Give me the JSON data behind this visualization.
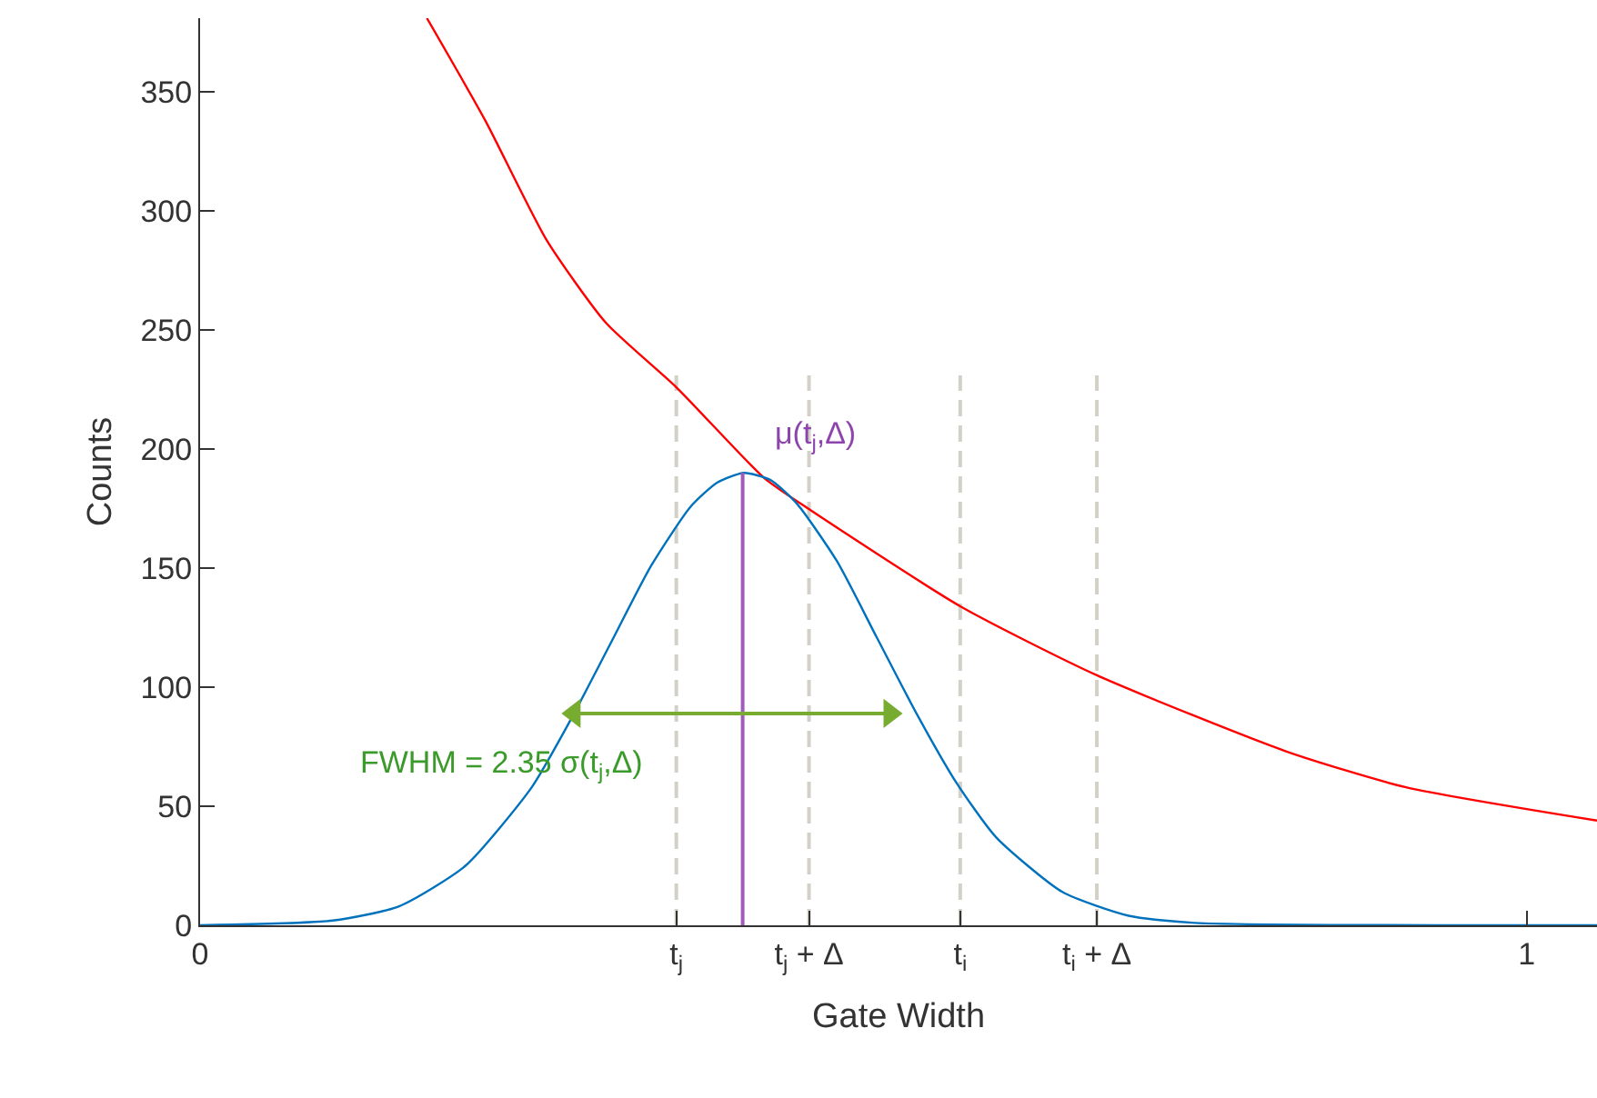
{
  "chart_data": {
    "type": "line",
    "xlabel": "Gate Width",
    "ylabel": "Counts",
    "xlim": [
      0,
      1.053
    ],
    "ylim": [
      0,
      381
    ],
    "xticks": [
      0,
      {
        "value": 0.359,
        "label": "t$_{j}$"
      },
      {
        "value": 0.459,
        "label": "t$_{j}$ + Δ"
      },
      {
        "value": 0.573,
        "label": "t$_{i}$"
      },
      {
        "value": 0.676,
        "label": "t$_{i}$ + Δ"
      },
      1
    ],
    "yticks": [
      0,
      50,
      100,
      150,
      200,
      250,
      300,
      350
    ],
    "series": [
      {
        "color": "#d3d0c8",
        "line_style": "dashed",
        "x": [
          0.359,
          0.359
        ],
        "values": [
          0,
          231
        ]
      },
      {
        "color": "#d3d0c8",
        "line_style": "dashed",
        "x": [
          0.459,
          0.459
        ],
        "values": [
          0,
          231
        ]
      },
      {
        "color": "#d3d0c8",
        "line_style": "dashed",
        "x": [
          0.573,
          0.573
        ],
        "values": [
          0,
          231
        ]
      },
      {
        "color": "#d3d0c8",
        "line_style": "dashed",
        "x": [
          0.676,
          0.676
        ],
        "values": [
          0,
          231
        ]
      },
      {
        "color": "#ff0000",
        "x": [
          0.171,
          0.215,
          0.261,
          0.306,
          0.359,
          0.425,
          0.453,
          0.573,
          0.676,
          0.819,
          0.909,
          1.053
        ],
        "values": [
          381,
          338,
          288,
          253,
          226,
          188,
          177,
          134,
          105,
          73,
          58,
          44
        ]
      },
      {
        "color": "#0072bd",
        "x": [
          0,
          0.1,
          0.15,
          0.2,
          0.25,
          0.28,
          0.31,
          0.34,
          0.37,
          0.39,
          0.41,
          0.43,
          0.45,
          0.48,
          0.51,
          0.54,
          0.57,
          0.6,
          0.65,
          0.7,
          0.75,
          1.053
        ],
        "values": [
          0,
          2,
          8,
          25,
          58,
          87,
          119,
          151,
          176,
          186,
          190,
          187,
          177,
          153,
          121,
          89,
          60,
          37,
          14,
          4,
          1,
          0
        ]
      },
      {
        "color": "#a05cb8",
        "x": [
          0.409,
          0.409
        ],
        "values": [
          0,
          190
        ]
      },
      {
        "color": "#77ac30",
        "x": [
          0.282,
          0.52
        ],
        "values": [
          89,
          89
        ],
        "marker": "triangle"
      }
    ],
    "annotations": [
      {
        "text": "μ(t$_{j}$,Δ)",
        "x": 0.409,
        "y": 190
      },
      "FWHM = 2.35 σ(t$_{j}$,Δ)"
    ]
  }
}
